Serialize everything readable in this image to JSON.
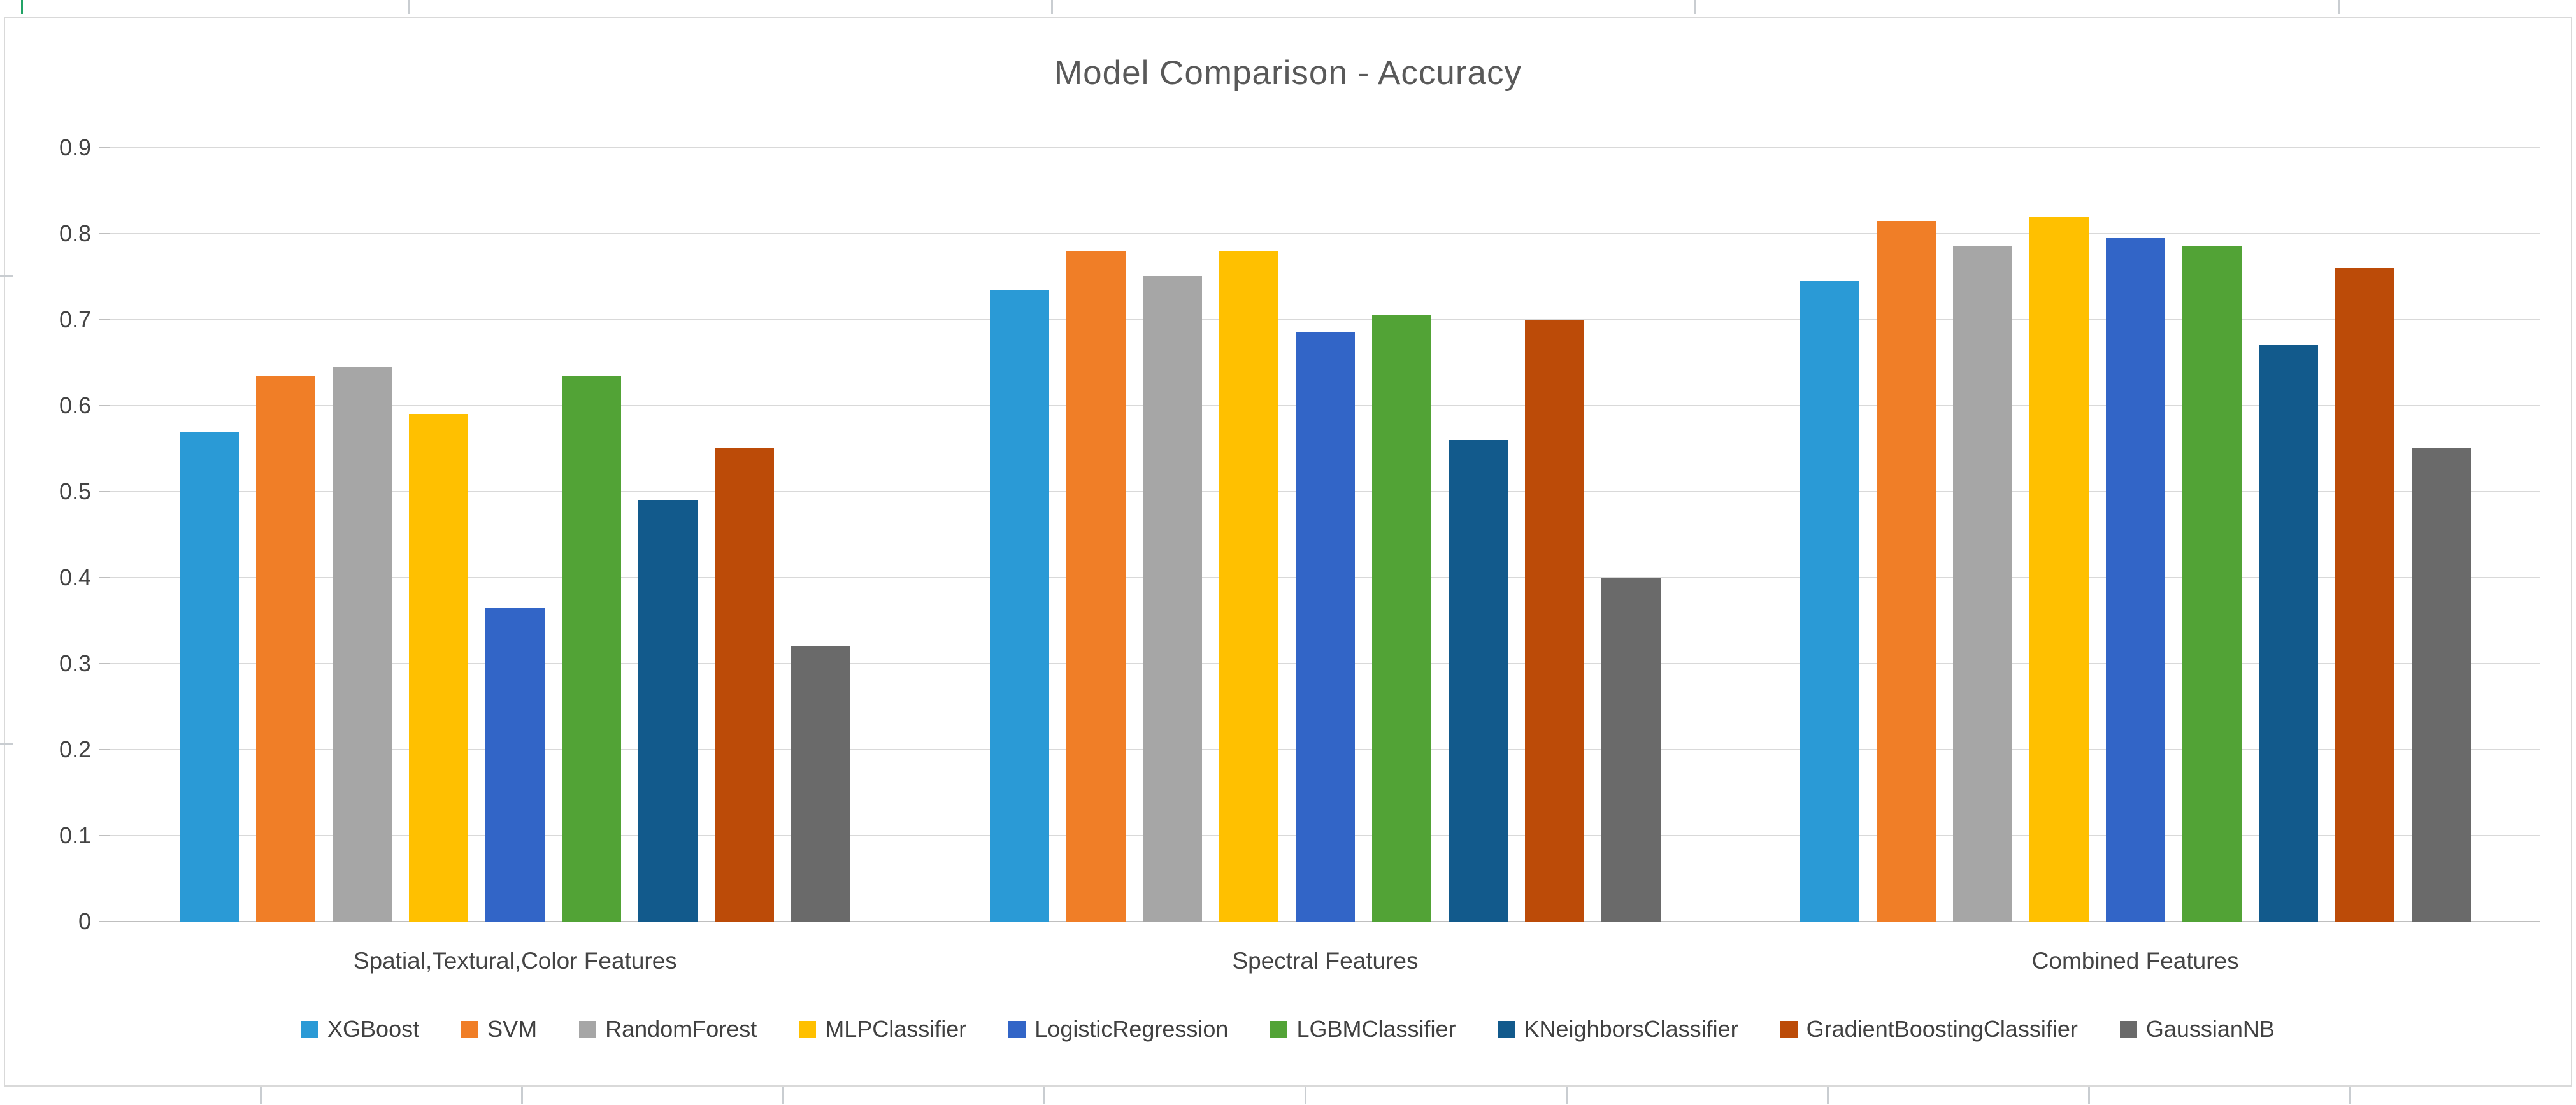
{
  "chart_data": {
    "type": "bar",
    "title": "Model Comparison - Accuracy",
    "categories": [
      "Spatial,Textural,Color Features",
      "Spectral Features",
      "Combined Features"
    ],
    "series": [
      {
        "name": "XGBoost",
        "color": "#2A9AD6",
        "values": [
          0.57,
          0.735,
          0.745
        ]
      },
      {
        "name": "SVM",
        "color": "#F07E27",
        "values": [
          0.635,
          0.78,
          0.815
        ]
      },
      {
        "name": "RandomForest",
        "color": "#A6A6A6",
        "values": [
          0.645,
          0.75,
          0.785
        ]
      },
      {
        "name": "MLPClassifier",
        "color": "#FFC000",
        "values": [
          0.59,
          0.78,
          0.82
        ]
      },
      {
        "name": "LogisticRegression",
        "color": "#3265C7",
        "values": [
          0.365,
          0.685,
          0.795
        ]
      },
      {
        "name": "LGBMClassifier",
        "color": "#52A336",
        "values": [
          0.635,
          0.705,
          0.785
        ]
      },
      {
        "name": "KNeighborsClassifier",
        "color": "#125A8C",
        "values": [
          0.49,
          0.56,
          0.67
        ]
      },
      {
        "name": "GradientBoostingClassifier",
        "color": "#BC4B08",
        "values": [
          0.55,
          0.7,
          0.76
        ]
      },
      {
        "name": "GaussianNB",
        "color": "#6A6A6A",
        "values": [
          0.32,
          0.4,
          0.55
        ]
      }
    ],
    "ylim": [
      0,
      0.9
    ],
    "yticks": [
      "0",
      "0.1",
      "0.2",
      "0.3",
      "0.4",
      "0.5",
      "0.6",
      "0.7",
      "0.8",
      "0.9"
    ],
    "grid": true,
    "legend_position": "bottom",
    "xlabel": "",
    "ylabel": ""
  },
  "colors": {
    "background": "#FFFFFF",
    "gridline": "#D9D9D9",
    "axis_line": "#BFBFBF",
    "border": "#D9D9D9",
    "title_text": "#595959",
    "axis_text": "#444444",
    "legend_text": "#404040",
    "spreadsheet_mark": "#C9CDD1",
    "selection_mark": "#21A366"
  }
}
